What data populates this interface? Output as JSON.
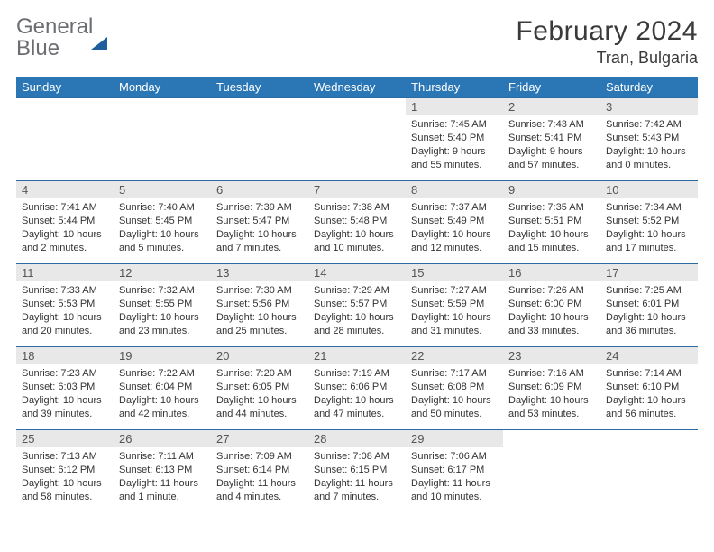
{
  "brand": {
    "part1": "General",
    "part2": "Blue"
  },
  "title": "February 2024",
  "location": "Tran, Bulgaria",
  "colors": {
    "header_bg": "#2b77b6",
    "header_text": "#ffffff",
    "daynum_bg": "#e8e8e8",
    "daynum_text": "#555555",
    "body_text": "#333333",
    "row_border": "#2b6aa3",
    "logo_grey": "#6b6d72",
    "logo_blue": "#2b77b6",
    "logo_tri": "#1e5e9c"
  },
  "weekdays": [
    "Sunday",
    "Monday",
    "Tuesday",
    "Wednesday",
    "Thursday",
    "Friday",
    "Saturday"
  ],
  "grid": [
    [
      null,
      null,
      null,
      null,
      {
        "n": "1",
        "sr": "7:45 AM",
        "ss": "5:40 PM",
        "dl": "9 hours and 55 minutes."
      },
      {
        "n": "2",
        "sr": "7:43 AM",
        "ss": "5:41 PM",
        "dl": "9 hours and 57 minutes."
      },
      {
        "n": "3",
        "sr": "7:42 AM",
        "ss": "5:43 PM",
        "dl": "10 hours and 0 minutes."
      }
    ],
    [
      {
        "n": "4",
        "sr": "7:41 AM",
        "ss": "5:44 PM",
        "dl": "10 hours and 2 minutes."
      },
      {
        "n": "5",
        "sr": "7:40 AM",
        "ss": "5:45 PM",
        "dl": "10 hours and 5 minutes."
      },
      {
        "n": "6",
        "sr": "7:39 AM",
        "ss": "5:47 PM",
        "dl": "10 hours and 7 minutes."
      },
      {
        "n": "7",
        "sr": "7:38 AM",
        "ss": "5:48 PM",
        "dl": "10 hours and 10 minutes."
      },
      {
        "n": "8",
        "sr": "7:37 AM",
        "ss": "5:49 PM",
        "dl": "10 hours and 12 minutes."
      },
      {
        "n": "9",
        "sr": "7:35 AM",
        "ss": "5:51 PM",
        "dl": "10 hours and 15 minutes."
      },
      {
        "n": "10",
        "sr": "7:34 AM",
        "ss": "5:52 PM",
        "dl": "10 hours and 17 minutes."
      }
    ],
    [
      {
        "n": "11",
        "sr": "7:33 AM",
        "ss": "5:53 PM",
        "dl": "10 hours and 20 minutes."
      },
      {
        "n": "12",
        "sr": "7:32 AM",
        "ss": "5:55 PM",
        "dl": "10 hours and 23 minutes."
      },
      {
        "n": "13",
        "sr": "7:30 AM",
        "ss": "5:56 PM",
        "dl": "10 hours and 25 minutes."
      },
      {
        "n": "14",
        "sr": "7:29 AM",
        "ss": "5:57 PM",
        "dl": "10 hours and 28 minutes."
      },
      {
        "n": "15",
        "sr": "7:27 AM",
        "ss": "5:59 PM",
        "dl": "10 hours and 31 minutes."
      },
      {
        "n": "16",
        "sr": "7:26 AM",
        "ss": "6:00 PM",
        "dl": "10 hours and 33 minutes."
      },
      {
        "n": "17",
        "sr": "7:25 AM",
        "ss": "6:01 PM",
        "dl": "10 hours and 36 minutes."
      }
    ],
    [
      {
        "n": "18",
        "sr": "7:23 AM",
        "ss": "6:03 PM",
        "dl": "10 hours and 39 minutes."
      },
      {
        "n": "19",
        "sr": "7:22 AM",
        "ss": "6:04 PM",
        "dl": "10 hours and 42 minutes."
      },
      {
        "n": "20",
        "sr": "7:20 AM",
        "ss": "6:05 PM",
        "dl": "10 hours and 44 minutes."
      },
      {
        "n": "21",
        "sr": "7:19 AM",
        "ss": "6:06 PM",
        "dl": "10 hours and 47 minutes."
      },
      {
        "n": "22",
        "sr": "7:17 AM",
        "ss": "6:08 PM",
        "dl": "10 hours and 50 minutes."
      },
      {
        "n": "23",
        "sr": "7:16 AM",
        "ss": "6:09 PM",
        "dl": "10 hours and 53 minutes."
      },
      {
        "n": "24",
        "sr": "7:14 AM",
        "ss": "6:10 PM",
        "dl": "10 hours and 56 minutes."
      }
    ],
    [
      {
        "n": "25",
        "sr": "7:13 AM",
        "ss": "6:12 PM",
        "dl": "10 hours and 58 minutes."
      },
      {
        "n": "26",
        "sr": "7:11 AM",
        "ss": "6:13 PM",
        "dl": "11 hours and 1 minute."
      },
      {
        "n": "27",
        "sr": "7:09 AM",
        "ss": "6:14 PM",
        "dl": "11 hours and 4 minutes."
      },
      {
        "n": "28",
        "sr": "7:08 AM",
        "ss": "6:15 PM",
        "dl": "11 hours and 7 minutes."
      },
      {
        "n": "29",
        "sr": "7:06 AM",
        "ss": "6:17 PM",
        "dl": "11 hours and 10 minutes."
      },
      null,
      null
    ]
  ],
  "labels": {
    "sunrise": "Sunrise:",
    "sunset": "Sunset:",
    "daylight": "Daylight:"
  }
}
